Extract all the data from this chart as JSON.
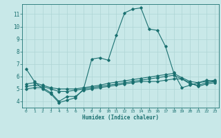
{
  "xlabel": "Humidex (Indice chaleur)",
  "background_color": "#c8e8e8",
  "grid_color": "#aed4d4",
  "line_color": "#1a7070",
  "axis_bottom_color": "#2a8080",
  "xlim": [
    -0.5,
    23.5
  ],
  "ylim": [
    3.5,
    11.8
  ],
  "yticks": [
    4,
    5,
    6,
    7,
    8,
    9,
    10,
    11
  ],
  "xticks": [
    0,
    1,
    2,
    3,
    4,
    5,
    6,
    7,
    8,
    9,
    10,
    11,
    12,
    13,
    14,
    15,
    16,
    17,
    18,
    19,
    20,
    21,
    22,
    23
  ],
  "line1_x": [
    0,
    1,
    2,
    3,
    4,
    5,
    6,
    7,
    8,
    9,
    10,
    11,
    12,
    13,
    14,
    15,
    16,
    17,
    18,
    19,
    20,
    21,
    22,
    23
  ],
  "line1_y": [
    6.6,
    5.6,
    5.0,
    4.6,
    3.9,
    4.1,
    4.3,
    5.0,
    7.4,
    7.5,
    7.3,
    9.3,
    11.1,
    11.4,
    11.5,
    9.8,
    9.7,
    8.4,
    6.3,
    5.1,
    5.3,
    5.5,
    5.7,
    5.6
  ],
  "line2_x": [
    0,
    1,
    2,
    3,
    4,
    5,
    6,
    7,
    8,
    9,
    10,
    11,
    12,
    13,
    14,
    15,
    16,
    17,
    18,
    19,
    20,
    21,
    22,
    23
  ],
  "line2_y": [
    5.0,
    5.1,
    5.1,
    4.7,
    4.0,
    4.4,
    4.4,
    4.9,
    5.0,
    5.1,
    5.2,
    5.3,
    5.4,
    5.5,
    5.6,
    5.6,
    5.6,
    5.7,
    5.8,
    5.8,
    5.5,
    5.2,
    5.4,
    5.5
  ],
  "line3_x": [
    0,
    1,
    2,
    3,
    4,
    5,
    6,
    7,
    8,
    9,
    10,
    11,
    12,
    13,
    14,
    15,
    16,
    17,
    18,
    19,
    20,
    21,
    22,
    23
  ],
  "line3_y": [
    5.2,
    5.3,
    5.2,
    5.0,
    4.8,
    4.8,
    4.9,
    5.0,
    5.1,
    5.2,
    5.3,
    5.4,
    5.5,
    5.6,
    5.7,
    5.8,
    5.9,
    6.0,
    6.1,
    5.8,
    5.4,
    5.3,
    5.5,
    5.6
  ],
  "line4_x": [
    0,
    1,
    2,
    3,
    4,
    5,
    6,
    7,
    8,
    9,
    10,
    11,
    12,
    13,
    14,
    15,
    16,
    17,
    18,
    19,
    20,
    21,
    22,
    23
  ],
  "line4_y": [
    5.4,
    5.5,
    5.3,
    5.1,
    5.0,
    5.0,
    5.0,
    5.1,
    5.2,
    5.3,
    5.45,
    5.55,
    5.65,
    5.75,
    5.85,
    5.95,
    6.05,
    6.15,
    6.25,
    5.9,
    5.6,
    5.5,
    5.6,
    5.7
  ]
}
